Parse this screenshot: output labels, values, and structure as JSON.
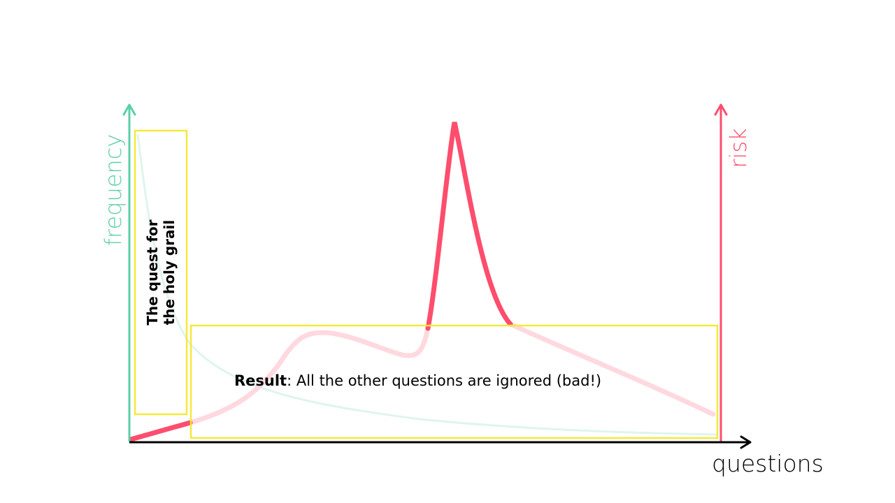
{
  "colors": {
    "frequency": "#5bcfa8",
    "frequency_faded": "#dff5ec",
    "risk": "#ff4d6d",
    "risk_faded": "#ffd9df",
    "highlight_box": "#f5e93a",
    "axis": "#000000"
  },
  "axes": {
    "left_label": "frequency",
    "right_label": "risk",
    "bottom_label": "questions"
  },
  "annotations": {
    "holy_grail_line1": "The quest for",
    "holy_grail_line2": "the holy grail",
    "result_bold": "Result",
    "result_rest": ": All the other questions are ignored (bad!)"
  }
}
